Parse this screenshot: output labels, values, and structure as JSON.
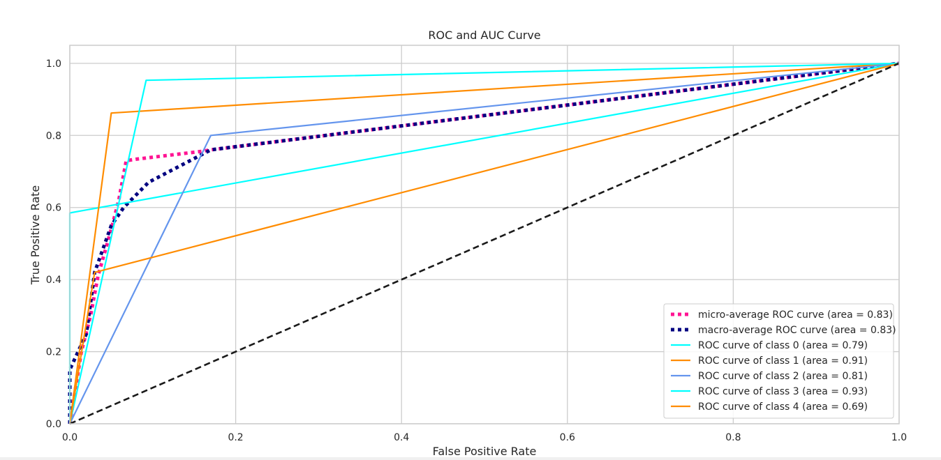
{
  "chart_data": {
    "type": "line",
    "title": "ROC and AUC Curve",
    "xlabel": "False Positive Rate",
    "ylabel": "True Positive Rate",
    "xlim": [
      0.0,
      1.0
    ],
    "ylim": [
      0.0,
      1.05
    ],
    "xticks": [
      "0.0",
      "0.2",
      "0.4",
      "0.6",
      "0.8",
      "1.0"
    ],
    "yticks": [
      "0.0",
      "0.2",
      "0.4",
      "0.6",
      "0.8",
      "1.0"
    ],
    "grid": true,
    "legend_position": "lower-right",
    "series": [
      {
        "name": "micro-average ROC curve (area = 0.83)",
        "color": "#ff1493",
        "style": "dotted",
        "x": [
          0.0,
          0.014,
          0.025,
          0.034,
          0.05,
          0.059,
          0.068,
          0.08,
          0.16,
          0.17,
          1.0
        ],
        "y": [
          0.0,
          0.2,
          0.3,
          0.41,
          0.54,
          0.62,
          0.73,
          0.734,
          0.756,
          0.76,
          1.0
        ]
      },
      {
        "name": "macro-average ROC curve (area = 0.83)",
        "color": "#000080",
        "style": "dotted",
        "x": [
          0.0,
          0.0,
          0.0,
          0.006,
          0.02,
          0.03,
          0.05,
          0.065,
          0.095,
          0.17,
          1.0
        ],
        "y": [
          0.0,
          0.12,
          0.15,
          0.18,
          0.25,
          0.42,
          0.55,
          0.6,
          0.67,
          0.76,
          1.0
        ]
      },
      {
        "name": "ROC curve of class 0 (area = 0.79)",
        "color": "#00ffff",
        "style": "solid",
        "x": [
          0.0,
          0.0,
          1.0
        ],
        "y": [
          0.0,
          0.585,
          1.0
        ]
      },
      {
        "name": "ROC curve of class 1 (area = 0.91)",
        "color": "#ff8c00",
        "style": "solid",
        "x": [
          0.0,
          0.05,
          1.0
        ],
        "y": [
          0.0,
          0.862,
          1.0
        ]
      },
      {
        "name": "ROC curve of class 2 (area = 0.81)",
        "color": "#6495ed",
        "style": "solid",
        "x": [
          0.0,
          0.17,
          1.0
        ],
        "y": [
          0.0,
          0.8,
          1.0
        ]
      },
      {
        "name": "ROC curve of class 3 (area = 0.93)",
        "color": "#00ffff",
        "style": "solid",
        "x": [
          0.0,
          0.092,
          1.0
        ],
        "y": [
          0.0,
          0.953,
          1.0
        ]
      },
      {
        "name": "ROC curve of class 4 (area = 0.69)",
        "color": "#ff8c00",
        "style": "solid",
        "x": [
          0.0,
          0.03,
          1.0
        ],
        "y": [
          0.0,
          0.42,
          1.0
        ]
      }
    ],
    "reference_line": {
      "x": [
        0.0,
        1.0
      ],
      "y": [
        0.0,
        1.0
      ],
      "color": "#1a1a1a",
      "style": "dashed"
    }
  }
}
